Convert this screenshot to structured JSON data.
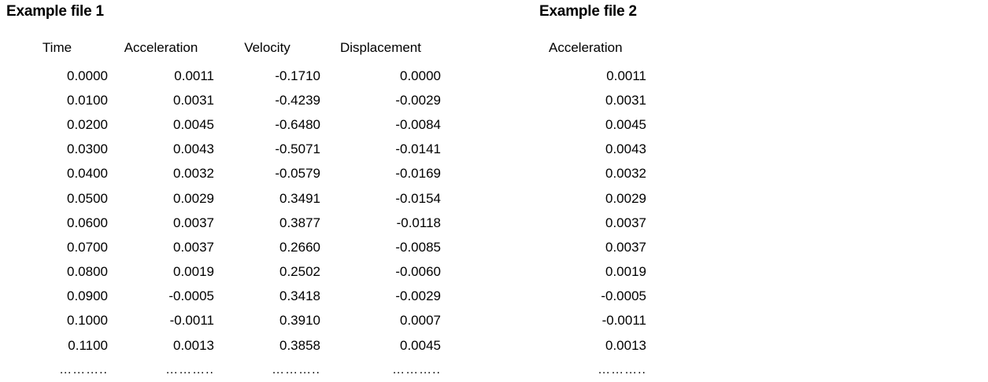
{
  "page": {
    "background_color": "#ffffff",
    "text_color": "#000000"
  },
  "file1": {
    "title": "Example file 1",
    "columns": [
      "Time",
      "Acceleration",
      "Velocity",
      "Displacement"
    ],
    "rows": [
      [
        "0.0000",
        "0.0011",
        "-0.1710",
        "0.0000"
      ],
      [
        "0.0100",
        "0.0031",
        "-0.4239",
        "-0.0029"
      ],
      [
        "0.0200",
        "0.0045",
        "-0.6480",
        "-0.0084"
      ],
      [
        "0.0300",
        "0.0043",
        "-0.5071",
        "-0.0141"
      ],
      [
        "0.0400",
        "0.0032",
        "-0.0579",
        "-0.0169"
      ],
      [
        "0.0500",
        "0.0029",
        "0.3491",
        "-0.0154"
      ],
      [
        "0.0600",
        "0.0037",
        "0.3877",
        "-0.0118"
      ],
      [
        "0.0700",
        "0.0037",
        "0.2660",
        "-0.0085"
      ],
      [
        "0.0800",
        "0.0019",
        "0.2502",
        "-0.0060"
      ],
      [
        "0.0900",
        "-0.0005",
        "0.3418",
        "-0.0029"
      ],
      [
        "0.1000",
        "-0.0011",
        "0.3910",
        "0.0007"
      ],
      [
        "0.1100",
        "0.0013",
        "0.3858",
        "0.0045"
      ]
    ],
    "ellipsis_row": [
      "………..",
      "………..",
      "………..",
      "……….."
    ]
  },
  "file2": {
    "title": "Example file 2",
    "columns": [
      "Acceleration"
    ],
    "rows": [
      [
        "0.0011"
      ],
      [
        "0.0031"
      ],
      [
        "0.0045"
      ],
      [
        "0.0043"
      ],
      [
        "0.0032"
      ],
      [
        "0.0029"
      ],
      [
        "0.0037"
      ],
      [
        "0.0037"
      ],
      [
        "0.0019"
      ],
      [
        "-0.0005"
      ],
      [
        "-0.0011"
      ],
      [
        "0.0013"
      ]
    ],
    "ellipsis_row": [
      "……….."
    ]
  }
}
